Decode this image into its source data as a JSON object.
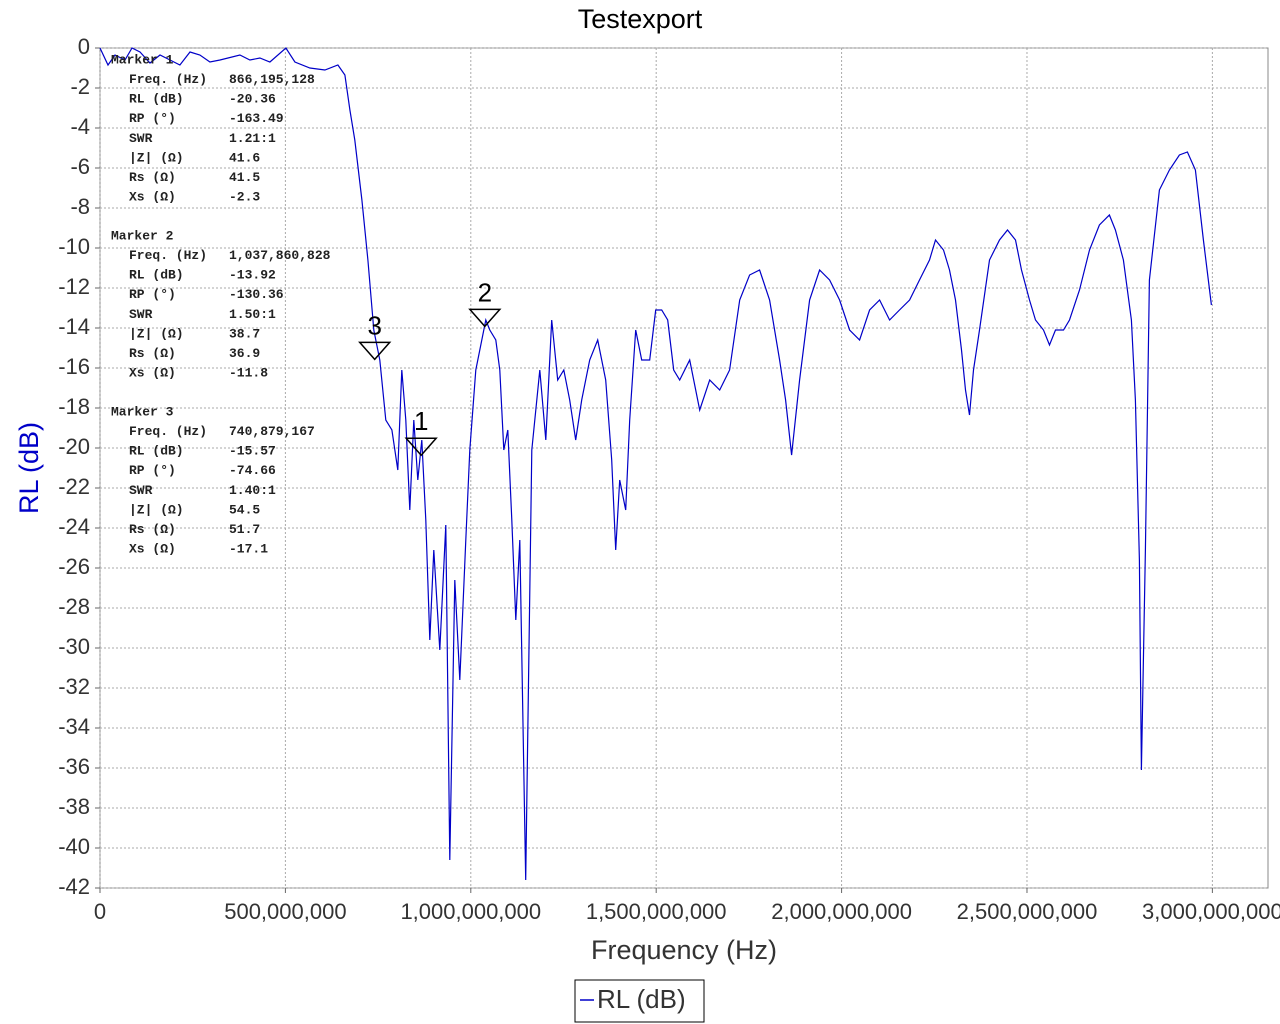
{
  "chart_data": {
    "type": "line",
    "title": "Testexport",
    "x_label": "Frequency (Hz)",
    "y_label": "RL (dB)",
    "xlim": [
      0,
      3150000000
    ],
    "ylim": [
      -42,
      0
    ],
    "xticks": [
      0,
      {
        "value": 500000000,
        "label": "500,000,000"
      },
      {
        "value": 1000000000,
        "label": "1,000,000,000"
      },
      {
        "value": 1500000000,
        "label": "1,500,000,000"
      },
      {
        "value": 2000000000,
        "label": "2,000,000,000"
      },
      {
        "value": 2500000000,
        "label": "2,500,000,000"
      },
      {
        "value": 3000000000,
        "label": "3,000,000,000"
      }
    ],
    "yticks": [
      0,
      -2,
      -4,
      -6,
      -8,
      -10,
      -12,
      -14,
      -16,
      -18,
      -20,
      -22,
      -24,
      -26,
      -28,
      -30,
      -32,
      -34,
      -36,
      -38,
      -40,
      -42
    ],
    "grid": true,
    "series": [
      {
        "name": "RL (dB)",
        "color": "#0000c8",
        "x": [
          0,
          21600000,
          40400000,
          67400000,
          86300000,
          107800000,
          134800000,
          161700000,
          188700000,
          215600000,
          242600000,
          269500000,
          296500000,
          323500000,
          377400000,
          404300000,
          431300000,
          458200000,
          501300000,
          525600000,
          566000000,
          606500000,
          641500000,
          660400000,
          673900000,
          687300000,
          706200000,
          722400000,
          738500000,
          754700000,
          770900000,
          787100000,
          803200000,
          814000000,
          824800000,
          835600000,
          846400000,
          857100000,
          867900000,
          878700000,
          889500000,
          900300000,
          916400000,
          932600000,
          943400000,
          956900000,
          970400000,
          986500000,
          997300000,
          1013500000,
          1024200000,
          1040400000,
          1051200000,
          1067400000,
          1078200000,
          1088900000,
          1099700000,
          1110500000,
          1121300000,
          1132100000,
          1148200000,
          1164400000,
          1186000000,
          1202200000,
          1218300000,
          1234500000,
          1250700000,
          1266800000,
          1283000000,
          1299200000,
          1320800000,
          1342300000,
          1363900000,
          1380100000,
          1390800000,
          1401600000,
          1417800000,
          1428600000,
          1444700000,
          1460900000,
          1482500000,
          1498700000,
          1514800000,
          1531000000,
          1547200000,
          1563300000,
          1590300000,
          1617300000,
          1644200000,
          1671200000,
          1698100000,
          1725100000,
          1752000000,
          1779000000,
          1805900000,
          1832900000,
          1849100000,
          1865200000,
          1886800000,
          1913700000,
          1940700000,
          1967700000,
          1994600000,
          2021600000,
          2048500000,
          2075500000,
          2102400000,
          2129400000,
          2156300000,
          2183300000,
          2210200000,
          2237200000,
          2253400000,
          2274900000,
          2291100000,
          2307300000,
          2323500000,
          2334200000,
          2345000000,
          2355800000,
          2372000000,
          2398900000,
          2425900000,
          2447400000,
          2469000000,
          2485200000,
          2506700000,
          2522900000,
          2544500000,
          2560600000,
          2576800000,
          2598400000,
          2614600000,
          2641500000,
          2668500000,
          2695400000,
          2722400000,
          2738500000,
          2760100000,
          2781700000,
          2792500000,
          2803200000,
          2808600000,
          2819400000,
          2830200000,
          2857100000,
          2884100000,
          2911100000,
          2932600000,
          2954200000,
          2975700000,
          2997300000
        ],
        "values": [
          0,
          -0.85,
          -0.35,
          -0.6,
          0,
          -0.2,
          -0.75,
          -0.35,
          -0.6,
          -0.85,
          -0.2,
          -0.35,
          -0.7,
          -0.6,
          -0.35,
          -0.6,
          -0.5,
          -0.7,
          0,
          -0.7,
          -1.0,
          -1.1,
          -0.85,
          -1.35,
          -3.1,
          -4.6,
          -7.6,
          -10.6,
          -14.1,
          -15.6,
          -18.6,
          -19.1,
          -21.1,
          -16.1,
          -18.6,
          -23.1,
          -18.6,
          -21.6,
          -19.6,
          -23.6,
          -29.6,
          -25.1,
          -30.1,
          -23.85,
          -40.6,
          -26.6,
          -31.6,
          -24.6,
          -20.1,
          -16.1,
          -15.1,
          -13.6,
          -14.1,
          -14.6,
          -16.1,
          -20.1,
          -19.1,
          -23.6,
          -28.6,
          -24.6,
          -41.6,
          -20.1,
          -16.1,
          -19.6,
          -13.6,
          -16.6,
          -16.1,
          -17.6,
          -19.6,
          -17.6,
          -15.6,
          -14.6,
          -16.6,
          -20.6,
          -25.1,
          -21.6,
          -23.1,
          -18.6,
          -14.1,
          -15.6,
          -15.6,
          -13.1,
          -13.1,
          -13.6,
          -16.1,
          -16.6,
          -15.6,
          -18.1,
          -16.6,
          -17.1,
          -16.1,
          -12.6,
          -11.35,
          -11.1,
          -12.6,
          -15.6,
          -17.6,
          -20.35,
          -16.6,
          -12.6,
          -11.1,
          -11.6,
          -12.6,
          -14.1,
          -14.6,
          -13.1,
          -12.6,
          -13.6,
          -13.1,
          -12.6,
          -11.6,
          -10.6,
          -9.6,
          -10.1,
          -11.1,
          -12.6,
          -15.1,
          -17.1,
          -18.35,
          -16.1,
          -14.1,
          -10.6,
          -9.6,
          -9.1,
          -9.6,
          -11.1,
          -12.6,
          -13.6,
          -14.1,
          -14.85,
          -14.1,
          -14.1,
          -13.6,
          -12.1,
          -10.1,
          -8.85,
          -8.35,
          -9.1,
          -10.6,
          -13.6,
          -17.6,
          -25.6,
          -36.1,
          -25.1,
          -11.6,
          -7.1,
          -6.1,
          -5.35,
          -5.2,
          -6.1,
          -9.6,
          -12.85
        ]
      }
    ],
    "markers": [
      {
        "name": "Marker 1",
        "label": "1",
        "x": 866195128,
        "y": -20.36,
        "rows": [
          [
            "Freq. (Hz)",
            "866,195,128"
          ],
          [
            "RL (dB)",
            "-20.36"
          ],
          [
            "RP (°)",
            "-163.49"
          ],
          [
            "SWR",
            "1.21:1"
          ],
          [
            "|Z| (Ω)",
            "41.6"
          ],
          [
            "Rs (Ω)",
            "41.5"
          ],
          [
            "Xs (Ω)",
            "-2.3"
          ]
        ]
      },
      {
        "name": "Marker 2",
        "label": "2",
        "x": 1037860828,
        "y": -13.92,
        "rows": [
          [
            "Freq. (Hz)",
            "1,037,860,828"
          ],
          [
            "RL (dB)",
            "-13.92"
          ],
          [
            "RP (°)",
            "-130.36"
          ],
          [
            "SWR",
            "1.50:1"
          ],
          [
            "|Z| (Ω)",
            "38.7"
          ],
          [
            "Rs (Ω)",
            "36.9"
          ],
          [
            "Xs (Ω)",
            "-11.8"
          ]
        ]
      },
      {
        "name": "Marker 3",
        "label": "3",
        "x": 740879167,
        "y": -15.57,
        "rows": [
          [
            "Freq. (Hz)",
            "740,879,167"
          ],
          [
            "RL (dB)",
            "-15.57"
          ],
          [
            "RP (°)",
            "-74.66"
          ],
          [
            "SWR",
            "1.40:1"
          ],
          [
            "|Z| (Ω)",
            "54.5"
          ],
          [
            "Rs (Ω)",
            "51.7"
          ],
          [
            "Xs (Ω)",
            "-17.1"
          ]
        ]
      }
    ]
  }
}
